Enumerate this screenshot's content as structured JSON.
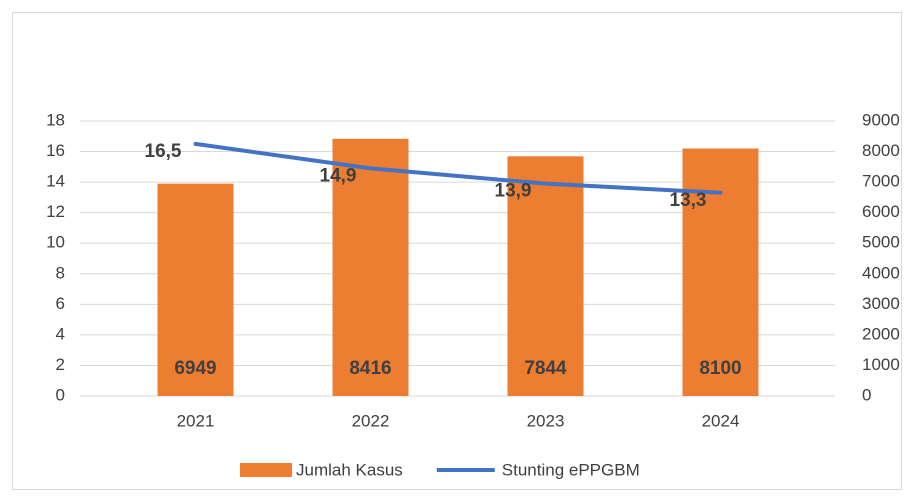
{
  "chart_data": {
    "type": "bar_line",
    "categories": [
      "2021",
      "2022",
      "2023",
      "2024"
    ],
    "series": [
      {
        "name": "Jumlah Kasus",
        "type": "bar",
        "axis": "y2",
        "color": "#ED7D31",
        "values": [
          6949,
          8416,
          7844,
          8100
        ]
      },
      {
        "name": "Stunting ePPGBM",
        "type": "line",
        "axis": "y",
        "color": "#4472C4",
        "values": [
          16.5,
          14.9,
          13.9,
          13.3
        ],
        "value_labels": [
          "16,5",
          "14,9",
          "13,9",
          "13,3"
        ]
      }
    ],
    "ylim": [
      0,
      18
    ],
    "yticks": [
      0,
      2,
      4,
      6,
      8,
      10,
      12,
      14,
      16,
      18
    ],
    "y2lim": [
      0,
      9000
    ],
    "y2ticks": [
      0,
      1000,
      2000,
      3000,
      4000,
      5000,
      6000,
      7000,
      8000,
      9000
    ],
    "grid": true,
    "legend": "bottom"
  }
}
